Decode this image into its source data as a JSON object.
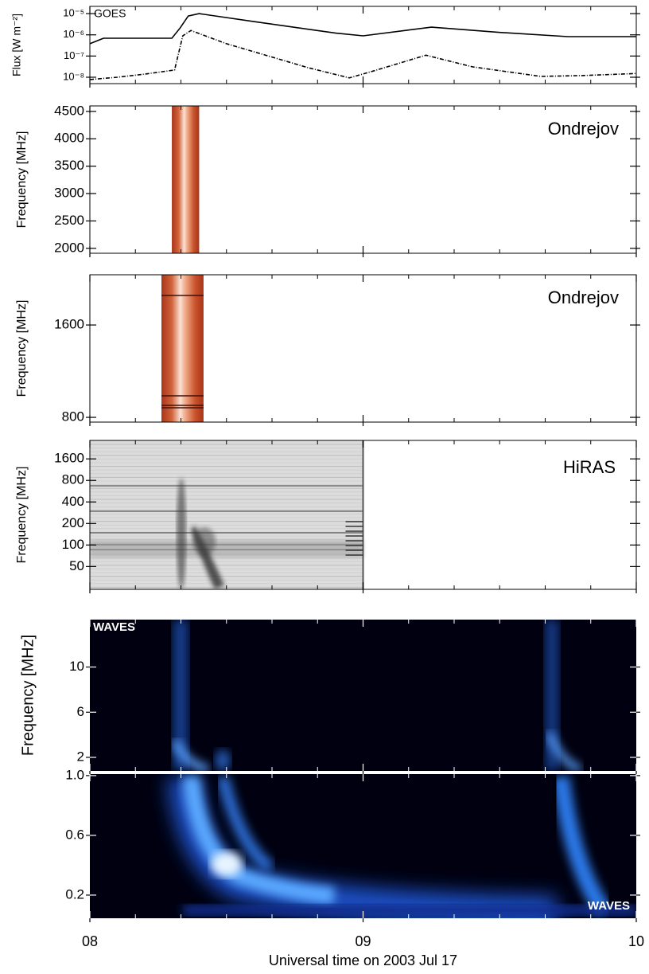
{
  "chart_data": [
    {
      "type": "line",
      "log_scale": true,
      "ylabel": "Flux [W m⁻²]",
      "annotation": "GOES",
      "xlim": [
        8,
        10
      ],
      "ylim": [
        5e-09,
        2.2e-05
      ],
      "yticks": [
        {
          "value": 1e-08,
          "label": "10⁻⁸"
        },
        {
          "value": 1e-07,
          "label": "10⁻⁷"
        },
        {
          "value": 1e-06,
          "label": "10⁻⁶"
        },
        {
          "value": 1e-05,
          "label": "10⁻⁵"
        }
      ],
      "series": [
        {
          "color": "#000000",
          "line_style": "solid",
          "x": [
            8.0,
            8.05,
            8.3,
            8.33,
            8.36,
            8.4,
            8.6,
            8.9,
            9.0,
            9.25,
            9.5,
            9.75,
            10.0
          ],
          "values": [
            3.8e-07,
            6.9e-07,
            6.9e-07,
            2.1e-06,
            7.7e-06,
            1e-05,
            4.2e-06,
            1.2e-06,
            9e-07,
            2.3e-06,
            1.3e-06,
            8.2e-07,
            8.2e-07
          ]
        },
        {
          "color": "#000000",
          "line_style": "dashed",
          "x": [
            8.0,
            8.1,
            8.2,
            8.31,
            8.34,
            8.37,
            8.5,
            8.8,
            8.95,
            9.05,
            9.23,
            9.4,
            9.65,
            9.8,
            10.0
          ],
          "values": [
            7.8e-09,
            1e-08,
            1.4e-08,
            2.2e-08,
            9e-07,
            1.6e-06,
            3.8e-07,
            2.8e-08,
            9.3e-09,
            2.2e-08,
            1.1e-07,
            3.1e-08,
            1.1e-08,
            1.2e-08,
            1.5e-08
          ]
        }
      ]
    },
    {
      "type": "spectrogram",
      "style": "ondrejov",
      "log_scale": false,
      "ylabel": "Frequency [MHz]",
      "annotation": "Ondrejov",
      "xlim": [
        8,
        10
      ],
      "ylim": [
        1910,
        4600
      ],
      "yticks": [
        2000,
        2500,
        3000,
        3500,
        4000,
        4500
      ],
      "time_range": [
        8.3,
        8.4
      ]
    },
    {
      "type": "spectrogram",
      "style": "ondrejov",
      "log_scale": false,
      "ylabel": "Frequency [MHz]",
      "annotation": "Ondrejov",
      "xlim": [
        8,
        10
      ],
      "ylim": [
        759,
        2035
      ],
      "yticks": [
        800,
        1600
      ],
      "time_range": [
        8.262,
        8.416
      ]
    },
    {
      "type": "spectrogram",
      "style": "hiras",
      "log_scale": true,
      "ylabel": "Frequency [MHz]",
      "annotation": "HiRAS",
      "xlim": [
        8,
        10
      ],
      "ylim": [
        24,
        2900
      ],
      "yticks": [
        50,
        100,
        200,
        400,
        800,
        1600
      ],
      "time_range": [
        8.0,
        9.0
      ]
    },
    {
      "type": "spectrogram",
      "style": "waves-high",
      "log_scale": false,
      "ylabel": "Frequency [MHz]",
      "annotation": "WAVES",
      "xlim": [
        8,
        10
      ],
      "ylim": [
        0.8,
        14.2
      ],
      "yticks": [
        2,
        6,
        10
      ],
      "time_range": [
        8.0,
        10.0
      ]
    },
    {
      "type": "spectrogram",
      "style": "waves-low",
      "log_scale": false,
      "annotation": "WAVES",
      "xlim": [
        8,
        10
      ],
      "ylim": [
        0.045,
        1.01
      ],
      "yticks": [
        {
          "value": 1.0,
          "label": "1.0"
        },
        0.6,
        0.2
      ],
      "time_range": [
        8.0,
        10.0
      ],
      "xticks": [
        {
          "value": 8,
          "label": "08"
        },
        {
          "value": 9,
          "label": "09"
        },
        10
      ],
      "xlabel": "Universal time on 2003 Jul 17"
    }
  ]
}
